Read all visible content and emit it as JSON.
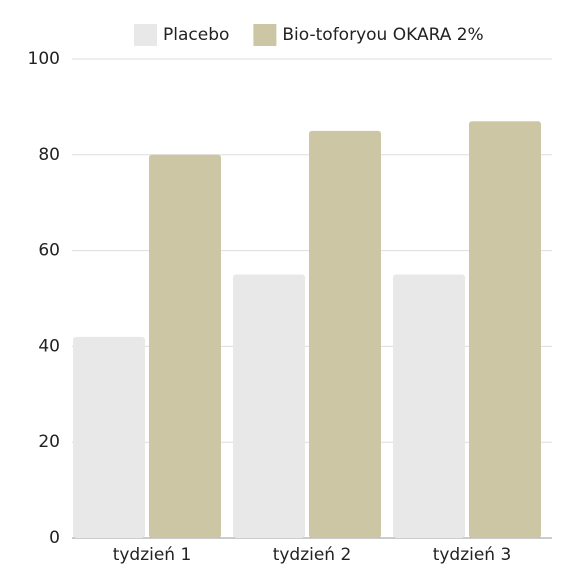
{
  "chart_data": {
    "type": "bar",
    "categories": [
      "tydzień 1",
      "tydzień 2",
      "tydzień 3"
    ],
    "series": [
      {
        "name": "Placebo",
        "color": "#e8e8e8",
        "values": [
          42,
          55,
          55
        ]
      },
      {
        "name": "Bio-toforyou OKARA 2%",
        "color": "#cdc6a5",
        "values": [
          80,
          85,
          87
        ]
      }
    ],
    "ylim": [
      0,
      100
    ],
    "yticks": [
      0,
      20,
      40,
      60,
      80,
      100
    ],
    "grid": true,
    "legend": "top"
  }
}
